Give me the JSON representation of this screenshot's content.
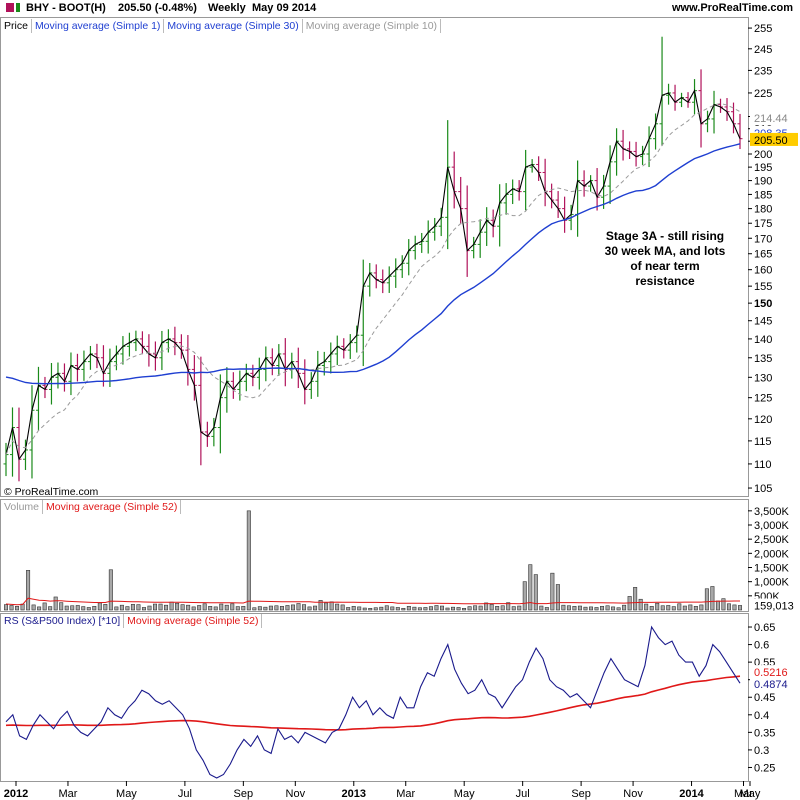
{
  "header": {
    "symbol": "BHY - BOOT(H)",
    "last": "205.50 (-0.48%)",
    "period": "Weekly",
    "date": "May 09 2014",
    "site": "www.ProRealTime.com"
  },
  "annotation": "Stage 3A - still rising\n30 week MA, and lots\nof near term\nresistance",
  "copyright": "© ProRealTime.com",
  "colors": {
    "up": "#1a8a1a",
    "down": "#b0125a",
    "ma30": "#1f3fd1",
    "ma10": "#9a9a9a",
    "ma1": "#000000",
    "rs": "#1a1a8c",
    "rs_ma": "#e01818",
    "vol_ma": "#e01818",
    "tag": "#ffcc00",
    "volume_bar": "#9a9a9a"
  },
  "chart_data": [
    {
      "type": "ohlc",
      "panel": "price",
      "legend": [
        "Price",
        "Moving average (Simple 1)",
        "Moving average (Simple 30)",
        "Moving average (Simple 10)"
      ],
      "y_ticks": [
        105,
        110,
        115,
        120,
        125,
        130,
        135,
        140,
        145,
        150,
        155,
        160,
        165,
        170,
        175,
        180,
        185,
        190,
        195,
        200,
        205,
        210,
        215,
        225,
        235,
        245,
        255
      ],
      "y_scale": "log",
      "x_labels": [
        "2012",
        "Mar",
        "May",
        "Jul",
        "Sep",
        "Nov",
        "2013",
        "Mar",
        "May",
        "Jul",
        "Sep",
        "Nov",
        "2014",
        "Mar",
        "May"
      ],
      "tag_values": {
        "ma10": "214.44",
        "ma30": "208.35",
        "last": "205.50"
      },
      "close_weekly": [
        112,
        118,
        111,
        113,
        122,
        128,
        127,
        130,
        131,
        129,
        133,
        132,
        134,
        136,
        135,
        131,
        134,
        136,
        138,
        139,
        140,
        138,
        136,
        135,
        139,
        140,
        139,
        137,
        132,
        128,
        117,
        116,
        118,
        125,
        129,
        127,
        129,
        131,
        130,
        132,
        135,
        133,
        136,
        132,
        134,
        131,
        127,
        129,
        133,
        134,
        136,
        138,
        137,
        139,
        141,
        155,
        159,
        157,
        156,
        158,
        160,
        162,
        166,
        168,
        169,
        172,
        174,
        177,
        195,
        186,
        180,
        166,
        168,
        172,
        176,
        174,
        182,
        185,
        187,
        186,
        195,
        196,
        193,
        186,
        183,
        180,
        176,
        178,
        190,
        188,
        190,
        184,
        188,
        197,
        205,
        202,
        201,
        199,
        200,
        206,
        212,
        224,
        225,
        221,
        223,
        221,
        226,
        212,
        214,
        220,
        219,
        217,
        212,
        206
      ]
    },
    {
      "type": "bar",
      "panel": "volume",
      "legend": [
        "Volume",
        "Moving average (Simple 52)"
      ],
      "y_ticks": [
        "3,500K",
        "3,000K",
        "2,500K",
        "2,000K",
        "1,500K",
        "1,000K",
        "500K"
      ],
      "last_value": "159,013",
      "values_k": [
        190,
        160,
        130,
        210,
        1400,
        180,
        110,
        250,
        120,
        460,
        260,
        140,
        150,
        160,
        120,
        90,
        130,
        250,
        200,
        1420,
        110,
        170,
        120,
        200,
        190,
        90,
        140,
        210,
        210,
        170,
        280,
        240,
        190,
        170,
        110,
        160,
        220,
        130,
        110,
        210,
        170,
        220,
        120,
        130,
        3500,
        80,
        120,
        100,
        140,
        150,
        130,
        160,
        180,
        230,
        190,
        110,
        140,
        340,
        250,
        290,
        210,
        180,
        90,
        130,
        110,
        70,
        60,
        80,
        100,
        150,
        110,
        90,
        60,
        130,
        100,
        80,
        90,
        120,
        160,
        140,
        70,
        100,
        90,
        60,
        120,
        150,
        140,
        250,
        200,
        130,
        150,
        260,
        120,
        140,
        1000,
        1600,
        1250,
        140,
        90,
        1300,
        900,
        170,
        150,
        130,
        140,
        100,
        110,
        90,
        130,
        150,
        110,
        80,
        170,
        480,
        800,
        380,
        210,
        130,
        240,
        150,
        160,
        120,
        220,
        140,
        180,
        130,
        180,
        750,
        830,
        320,
        400,
        220,
        180,
        160
      ]
    },
    {
      "type": "line",
      "panel": "rs",
      "legend": [
        "RS (S&P500 Index) [*10]",
        "Moving average (Simple 52)"
      ],
      "y_ticks": [
        0.25,
        0.3,
        0.35,
        0.4,
        0.45,
        0.5,
        0.55,
        0.6,
        0.65
      ],
      "tag_values": {
        "ma52": "0.5216",
        "rs": "0.4874"
      },
      "values": [
        0.38,
        0.4,
        0.34,
        0.33,
        0.37,
        0.4,
        0.38,
        0.36,
        0.39,
        0.41,
        0.37,
        0.35,
        0.34,
        0.36,
        0.38,
        0.42,
        0.4,
        0.39,
        0.42,
        0.44,
        0.47,
        0.46,
        0.44,
        0.43,
        0.44,
        0.42,
        0.4,
        0.36,
        0.3,
        0.27,
        0.23,
        0.22,
        0.23,
        0.26,
        0.3,
        0.33,
        0.31,
        0.34,
        0.3,
        0.29,
        0.36,
        0.33,
        0.34,
        0.32,
        0.35,
        0.34,
        0.33,
        0.32,
        0.35,
        0.36,
        0.4,
        0.45,
        0.42,
        0.44,
        0.4,
        0.42,
        0.4,
        0.39,
        0.45,
        0.42,
        0.42,
        0.48,
        0.52,
        0.51,
        0.56,
        0.6,
        0.53,
        0.49,
        0.46,
        0.47,
        0.5,
        0.46,
        0.45,
        0.42,
        0.45,
        0.48,
        0.5,
        0.55,
        0.59,
        0.56,
        0.5,
        0.48,
        0.47,
        0.45,
        0.46,
        0.44,
        0.42,
        0.47,
        0.52,
        0.56,
        0.53,
        0.5,
        0.49,
        0.48,
        0.54,
        0.65,
        0.62,
        0.6,
        0.61,
        0.57,
        0.55,
        0.55,
        0.51,
        0.54,
        0.6,
        0.58,
        0.55,
        0.52,
        0.49
      ]
    }
  ]
}
